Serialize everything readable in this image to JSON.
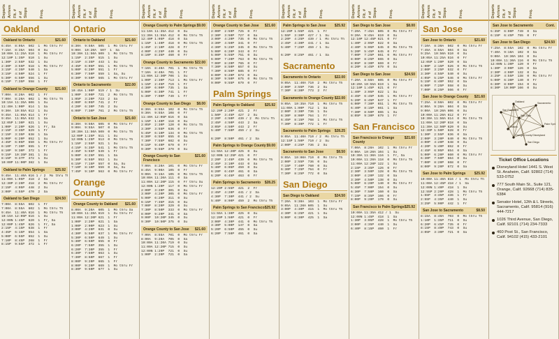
{
  "column_headers": [
    "Departs",
    "Arrives",
    "Flt. #",
    "# of Stops",
    "Freq."
  ],
  "panels": [
    {
      "blocks": [
        {
          "city": "Oakland"
        },
        {
          "route": "Oakland to Ontario",
          "fare": "$21.60",
          "rows": [
            "6:45A  8:05A  502  1  Mo thru Fr",
            "7:15A  8:35A  504  0  Su",
            "10:00A 11:25A 510  1  Mo thru Fr",
            "12:10P 1:35P  510  1  Su",
            "1:30P  2:55P  532  1  Su",
            "2:30P  3:55P  518  1  Mo thru Fr",
            "3:15P  4:35P  540  1  Sa",
            "3:15P  4:50P  524  1  Fr",
            "5:30P  6:50P  556  1  Su",
            "6:15P  7:35P  558  1  Fr"
          ]
        },
        {
          "route": "Oakland to Orange County",
          "fare": "$21.60",
          "rows": [
            "7:00A  8:20A  602  1  Fr",
            "7:00A  8:20A  602  1  Mo thru Th",
            "10:15A 11:35A 606  1  Su",
            "11:40A 1:00P  614  1  Sa",
            "9:30A  10:55A 612  1  Su",
            "9:45A  11:05A 614  1  Fr",
            "9:45A  11:05A 632  1  Sa",
            "12:05P 1:30P  621  1  Su",
            "1:00P  2:20P  626  1  Fr, Sa",
            "2:15P  3:35P  629  1  Fr",
            "2:15P  3:35P  638  1  Sa",
            "5:00P  6:20P  652  1  Su",
            "4:45P  6:05P  650  1  Mo thru Fr",
            "6:10P  7:30P  655  1  Fr",
            "8:10P  9:30P  372  1  Fr",
            "9:15P  10:35P 381  1  Su",
            "8:15P  9:37P  372  1  Su",
            "10:00P 11:00P 382  1  Su"
          ]
        },
        {
          "route": "Oakland to Palm Springs",
          "fare": "$25.92",
          "rows": [
            "9:45A  11:40A 616 1 / 2  Mo thru Th",
            "11:00A 1:05P  418  2  Sa",
            "12:30P 2:20P  418  2  Mo thru Fr",
            "2:15P  4:05P  448  2  Su",
            "3:00P  4:55P  470  2  Sa"
          ]
        },
        {
          "route": "Oakland to San Diego",
          "fare": "$24.50",
          "rows": [
            "7:00A  8:55A  602  1  Fr",
            "7:00A  8:55A  602  1  Mo thru Th",
            "9:45A  11:40A 616  1  Mo thru Th",
            "10:15A 12:05P 616  1  Su",
            "12:00N 1:45P  620  1  Fr, Sa",
            "12:00P 1:45P  626  1  Fr, Sa",
            "2:15P  4:15P  638  1  Fr",
            "4:45P  6:15P  654  1  Sa",
            "5:00P  6:55P  652  1  Su",
            "7:10P  8:45P  268  1  Fr",
            "8:15P  9:55P  372  1  Fr"
          ]
        }
      ]
    },
    {
      "blocks": [
        {
          "city": "Ontario"
        },
        {
          "route": "Ontario to Oakland",
          "fare": "$21.60",
          "rows": [
            "8:30A  9:50A  505  1  Mo thru Fr",
            "9:00A  10:20A  507  1  Sa",
            "10:30A 11:50A 509  1  Mo thru Th",
            "1:15P  2:35P  515  1  Su",
            "3:15P  4:35P  443  1  Su",
            "4:45P  6:05P  551  1  Mo thru Th",
            "5:00P  6:20P  551  1  Fr",
            "6:30P  7:50P  559  1  Sa, Su",
            "8:30P  9:50P  565  1  Mo thru Fr"
          ]
        },
        {
          "route": "Ontario to Sacramento",
          "fare": "$22.00",
          "rows": [
            "10:45A 1:00P  519 / 1  Su",
            "1:00P  3:00P  721  2  Mo thru Th",
            "1:05P  3:20P  723  2  Sa",
            "4:00P  6:05P  741  2  Fr",
            "4:20P  6:30P  745  2  Su",
            "6:00P  7:30P  761  2  Mo thru Th"
          ]
        },
        {
          "route": "Ontario to San Jose",
          "fare": "$21.60",
          "rows": [
            "8:30A  9:50A  505  0  Mo thru Fr",
            "9:00A  9:55A  507  0  Sa",
            "10:30A 11:50A 509  0  Mo thru Th",
            "12:00P 1:25P  511  1  Su",
            "12:00N 1:25P  513  0  Mo thru Th",
            "1:15P  2:55P  521  1  Su",
            "4:15P  5:35P  541  1  Mo thru Th",
            "4:35P  5:55P  549  1  Fr",
            "5:00P  6:25P  551  1  Sa",
            "5:30P  6:55P  553  1  Su",
            "6:15P  7:15P  557  0  Sa, Su",
            "7:10P  8:10P  559  0  Sa, Su",
            "7:45P  9:10P  563  0  Mo thru Fr"
          ]
        },
        {
          "city": "Orange County"
        },
        {
          "route": "Orange County to Oakland",
          "fare": "$21.60",
          "rows": [
            "8:00A  9:20A  605  1  Mo thru Sa",
            "10:00A 11:20A 619  1  Su thru Fr",
            "11:00A 12:20P 621  1  Fr",
            "1:00P  2:20P  621  1  Sa",
            "1:00P  2:00P  623  1  Su",
            "3:00P  4:20P  631  0  Su",
            "4:30P  5:50P  637  1  Mo thru Fr",
            "5:30P  6:50P  649  1  Su",
            "5:30P  6:50P  655  0  Fr",
            "6:20P  7:50P  355  1  Su",
            "6:20P  7:30P  355  1  Fr",
            "6:30P  7:50P  663  1  Su",
            "7:30P  8:50P  667  1  Fr",
            "8:00P  9:20P  665  1  Fr",
            "8:00P  9:20P  669  1  Mo thru Fr",
            "8:30P  9:50P  677  1  Su"
          ]
        }
      ]
    },
    {
      "blocks": [
        {
          "route": "Orange County to Palm Springs",
          "fare": "$9.00",
          "rows": [
            "11:10A 11:35A 412  0  Su",
            "11:30A 11:55A 412  0  Mo thru Th",
            "12:40P 1:05P  418  0  Sa",
            "1:15P  1:40P  418  0  Mo thru Th",
            "1:45P  2:10P  428  0  Fr",
            "4:00P  4:25P  440  0  Su",
            "8:10P  8:35P  460  0  Fr"
          ]
        },
        {
          "route": "Orange County to Sacramento",
          "fare": "$22.00",
          "rows": [
            "7:10A  8:40A  701  1  Mo thru Th",
            "7:10A  8:40A  701  1  Fr",
            "11:00A 12:30P 706  1  Su",
            "1:00P  2:30P  713  1  Mo thru Fr",
            "1:15P  2:45P  719  1  Fr",
            "4:30P  6:00P  735  1  Sa",
            "5:00P  6:30P  741  1  Fr",
            "5:30P  7:00P  749  1  Fr"
          ]
        },
        {
          "route": "Orange County to San Diego",
          "fare": "$8.00",
          "rows": [
            "8:30A  8:55A  102  0  Mo thru Th",
            "9:30A  9:55A  108  0  Fr",
            "11:40A 12:05P 616  0  Sa",
            "1:15P  1:40P  118  0  Su",
            "2:05P  2:30P  120  0  Mo thru Th",
            "3:30P  3:55P  636  0  Fr",
            "5:45P  6:10P  134  0  Mo thru Th",
            "6:30P  6:55P  655  0  Sa",
            "7:30P  7:55P  682  0  Su",
            "9:15P  9:40P  679  0  Fr",
            "9:30P  9:55P  379  0  Su"
          ]
        },
        {
          "route": "Orange County to San Francisco",
          "fare": "$21.60",
          "rows": [
            "7:00A  8:20A  101  0  Mo thru Fr",
            "8:45A  9:00A  105  0  Fr",
            "9:00A  9:15A  105  0  Mo thru Th",
            "10:00A 11:20A 111  0  Sa",
            "11:00A 12:20P 115  0  Fr thru Su",
            "12:00N 1:20P  117  0  Mo thru Fr",
            "2:00P  3:20P  301  0  Su",
            "3:00P  4:20P  305  0  Mo thru Fr",
            "5:00P  6:20P  311  0  Su",
            "6:15P  7:35P  315  0  Su",
            "7:00P  8:20P  329  0  Su",
            "7:30P  8:50P  333  0  Mo thru Fr",
            "8:00P  9:20P  341  0  Sa",
            "9:00P  10:20P 345  0  Su",
            "9:30P  10:50P 375  0  Su"
          ]
        },
        {
          "route": "Orange County to San Jose",
          "fare": "$21.60",
          "rows": [
            "7:00A  8:55A  701  0  Mo thru Fr",
            "8:00A  9:20A  705  0  Sa",
            "10:00A 11:20A 719  0  Su",
            "11:00A 12:20P 715  0  Su",
            "12:00N 1:20P  721  0  Su",
            "1:00P  2:20P  721  0  Sa"
          ]
        }
      ]
    },
    {
      "blocks": [
        {
          "route": "Orange County to San Jose",
          "fare": "$21.60",
          "rows": [
            "2:00P  2:59P  725  0  Fr",
            "2:30P  3:50P  727  0  Sa",
            "3:00P  4:20P  735  0  Mo thru Th",
            "3:30P  4:50P  341  0  Fr",
            "4:30P  5:25P  345  0  Mo thru Th",
            "5:00P  6:20P  343  0  Fr",
            "5:00P  5:55P  751  0  Su",
            "6:00P  7:20P  763  0  Mo thru Th",
            "7:00P  8:20P  765  0  Fr",
            "7:30P  8:50P  657  0  Su",
            "7:30P  8:50P  685  0  Fr",
            "8:00P  9:20P  673  0  Su",
            "8:30P  9:50P  675  0  Mo thru Th",
            "9:00P  9:55P  679  0  Fr"
          ]
        },
        {
          "city": "Palm Springs"
        },
        {
          "route": "Palm Springs to Oakland",
          "fare": "$25.92",
          "rows": [
            "12:20P 2:20P  421  2  Fr",
            "1:50P  3:45P  427  2  Su",
            "2:20P  4:50P  439 / 2  Mo thru Th",
            "2:45P  4:50P  443  2  Sa",
            "3:05P  4:50P  443  2  Fr",
            "5:40P  7:50P  459 / 2  Su",
            "",
            "6:20P  8:50P  461 / 2  Sa"
          ]
        },
        {
          "route": "Palm Springs to Orange County",
          "fare": "$9.00",
          "rows": [
            "11:55A 12:20P 425  0  Su",
            "12:00N 12:25P 421  0  Fr",
            "2:20P  2:45P  439  0  Mo thru Th",
            "2:45P  3:10P  443  0  Sa",
            "5:40P  6:05P  459  0  Su",
            "6:20P  6:45P  461  0  Sa",
            "6:20P  6:45P  463  0  Fr"
          ]
        },
        {
          "route": "Palm Springs to Sacramento",
          "fare": "$28.25",
          "rows": [
            "12:20P 2:55P  421  2  Fr",
            "2:45P  4:20P  441 / 2  Sa",
            "4:30P  7:30P  441 / 2  Su",
            "5:40P  8:00P  459  2  Mo thru Th"
          ]
        },
        {
          "route": "Palm Springs to San Francisco",
          "fare": "$25.92",
          "rows": [
            "11:55A 1:30P  425  0  Su",
            "12:20P 1:50P  421  0  Fr",
            "3:00P  4:30P  441  0  Mo thru Th",
            "3:30P  5:00P  147  0  Sa",
            "5:20P  6:50P  455  0  Su",
            "6:20P  7:50P  461  0  Sa"
          ]
        }
      ]
    },
    {
      "blocks": [
        {
          "route": "Palm Springs to San Jose",
          "fare": "$25.92",
          "rows": [
            "12:20P 1:55P  421  1  Fr",
            "1:55P  3:30P  427 / 1  Su",
            "2:20P  4:25P  439 / 1  Mo thru Th",
            "2:45P  4:30P  441 / 1  Sa",
            "5:40P  7:25P  459 / 1  Su",
            "",
            "6:20P  8:25P  461 / 1  Sa"
          ]
        },
        {
          "city": "Sacramento"
        },
        {
          "route": "Sacramento to Ontario",
          "fare": "$22.00",
          "rows": [
            "9:05A  11:40A 710  2  Mo thru Th",
            "2:00P  3:55P  736  2  Su",
            "7:30P  8:30P  773  2  Fr"
          ]
        },
        {
          "route": "Sacramento to Orange County",
          "fare": "$22.00",
          "rows": [
            "9:05A  10:35A 710  1  Mo thru Th",
            "11:00A 1:00P  712  1  Sa",
            "2:00P  3:30P  736  1  Su",
            "6:30P  8:00P  764  1  Fr",
            "6:45P  8:15P  768  1  Mo thru Th",
            "7:30P  8:30P  772  1  Fr"
          ]
        },
        {
          "route": "Sacramento to Palm Springs",
          "fare": "$28.25",
          "rows": [
            "9:05A  11:40A 710 / 2  Mo thru Th",
            "12:15P 1:50P  710 / 2  Su",
            "2:00P  4:25P  736  2  Su"
          ]
        },
        {
          "route": "Sacramento to San Jose",
          "fare": "$8.50",
          "rows": [
            "9:05A  10:00A 710  0  Mo thru Th",
            "2:00P  2:55P  736  0  Su",
            "7:15P  7:40P  760  0  Su",
            "6:30P  7:25P  764  0  Fr",
            "7:30P  8:25P  772  0  Sa"
          ]
        },
        {
          "city": "San Diego"
        },
        {
          "route": "San Diego to Oakland",
          "fare": "$24.50",
          "rows": [
            "7:20A  9:30A  103  1  Mo thru Fr",
            "9:05A  11:20A 605  1  Su",
            "3:00P  4:30P  415  1  Mo thru Th",
            "4:30P  6:25P  421  1  Su",
            "5:00P  6:30P  425  1  Sa"
          ]
        }
      ]
    },
    {
      "blocks": [
        {
          "route": "San Diego to San Jose",
          "fare": "$8.00",
          "rows": [
            "7:20A  7:45A  605  0  Mo thru Fr",
            "9:20A  9:45A  619  0  Su",
            "12:10P 12:45P 621  0  Fr",
            "1:40P  2:05P  622  0  Sa",
            "4:40P  5:05P  645  0  Mo thru Th",
            "5:20P  5:45P  645  0  Fr",
            "7:00P  7:25P  661  0  Mo thru Fr",
            "8:00P  8:25P  665  0  Su",
            "8:05P  8:30P  669  0  Fr",
            "8:20P  8:45P  679  0  Su"
          ]
        },
        {
          "route": "San Diego to San Jose",
          "fare": "$24.50",
          "rows": [
            "7:20A  8:50A  605  0  Mo thru Fr",
            "10:20A 10:55A 619  1  Sa",
            "12:10P 1:45P  621  0  Fr",
            "1:40P  3:05P  622  1  Su",
            "4:45P  6:45P  645  1  Mo thru Fr",
            "5:20P  6:45P  647  1  Fr",
            "6:00P  7:30P  651  1  Mo thru Th",
            "6:40P  8:15P  661  1  Sa",
            "7:30P  8:50P  665  1  Su",
            "8:05P  9:30P  679  1  Fr"
          ]
        },
        {
          "city": "San Francisco"
        },
        {
          "route": "San Francisco to Orange County",
          "fare": "$21.60",
          "rows": [
            "7:00A  8:20A  102  1  Mo thru Fr",
            "9:00A  10:20A 104  1  Su",
            "10:30A 11:30A 116  1  Fr, Sa",
            "10:00A 11:20A 118  0  Mo thru Th",
            "11:00A 12:20P 122  1  Su",
            "2:15P  3:35P  126  0  Fr",
            "2:30P  3:50P  128  0  Mo thru Th",
            "3:00P  4:20P  132  0  Sa",
            "3:30P  4:50P  138  0  Su",
            "5:00P  6:20P  140  0  Mo thru Fr",
            "5:45P  7:00P  154  0  Su",
            "6:30P  7:50P  160  0  Sa",
            "7:15P  8:35P  166  0  Fr",
            "8:00P  9:20P  170  0  Su"
          ]
        },
        {
          "route": "San Francisco to Palm Springs",
          "fare": "$25.92",
          "rows": [
            "10:00A 11:35A 412 / 1  Su",
            "12:00N 1:45P  418  1  Sa",
            "1:30P  3:05P  428  1  Mo thru Th",
            "3:00P  4:35P  440  1  Su",
            "6:40P  8:15P  460  1  Fr"
          ]
        }
      ]
    },
    {
      "blocks": [
        {
          "city": "San Jose"
        },
        {
          "route": "San Jose to Ontario",
          "fare": "$21.60",
          "rows": [
            "7:10A  8:30A  502  0  Mo thru Fr",
            "7:45A  8:55A  504  0  Sa",
            "9:25A  10:50A 510  0  Su",
            "10:05A 11:25A 516  0  Fr",
            "12:05P 1:20P  520  0  Sa",
            "1:00P  2:15P  526  0  Mo thru Th",
            "2:00P  3:25P  532  0  Fr",
            "3:30P  4:55P  540  0  Su",
            "4:05P  5:25P  546  0  Mo thru Fr",
            "5:15P  6:40P  552  0  Sa",
            "6:00P  7:25P  558  0  Su",
            "7:00P  8:25P  566  0  Fr"
          ]
        },
        {
          "route": "San Jose to Orange County",
          "fare": "$21.60",
          "rows": [
            "7:25A  8:50A  602  0  Mo thru Fr",
            "8:00A  9:20A  604  0  Sa",
            "9:00A  10:20A 606  0  Su",
            "10:00A 11:20A 612  0  Fr",
            "10:30A 11:50A 614  0  Mo thru Th",
            "11:00A 12:20P 618  0  Sa",
            "11:30A 12:50P 620  0  Su",
            "12:30P 1:50P  628  0  Fr",
            "1:30P  2:55P  636  0  Sa",
            "2:00P  3:20P  640  0  Mo thru Th",
            "3:00P  4:20P  648  0  Su",
            "4:20P  5:40P  652  0  Fr",
            "4:45P  6:05P  654  0  Sa",
            "5:00P  6:20P  660  0  Mo thru Fr",
            "6:30P  7:50P  664  0  Su",
            "7:00P  8:20P  668  0  Fr",
            "8:00P  9:20P  672  0  Sa"
          ]
        },
        {
          "route": "San Jose to Palm Springs",
          "fare": "$25.92",
          "rows": [
            "10:00A 11:40A 616 / 1  Mo thru Th",
            "11:00A 12:45P 418 / 1  Sa",
            "12:00N 1:40P  418  1  Su",
            "12:55P 2:20P  428  1  Mo thru Th",
            "1:55P  3:35P  436  1  Fr",
            "2:55P  4:35P  440  1  Su",
            "3:25P  5:00P  442  1  Fr"
          ]
        },
        {
          "route": "San Jose to Sacramento",
          "fare": "$8.50",
          "rows": [
            "8:15A  8:40A  703  0  Mo thru Th",
            "1:10P  1:35P  711  0  Su",
            "6:20P  6:45P  735  0  Fr",
            "8:15P  8:40P  743  0  Su",
            "3:05P  3:30P  721  0  Sa"
          ]
        }
      ]
    },
    {
      "blocks": [
        {
          "route": "San Jose to Sacramento",
          "fare": "Cont.",
          "rows": [
            "5:35P  6:00P  749  0  Sa",
            "6:15P  6:45P  755  0  Fr"
          ]
        },
        {
          "route": "San Jose to San Diego",
          "fare": "$24.50",
          "rows": [
            "7:25A  8:55A  102  0  Mo thru Fr",
            "7:40A  9:10A  102  0  Sa",
            "9:00A  10:30A 104  0  Su",
            "10:00A 11:30A 116  0  Mo thru Th",
            "12:00N 1:30P  120  0  Fr",
            "1:30P  3:00P  126  0  Sa",
            "2:30P  4:00P  132  0  Su",
            "3:25P  4:55P  138  0  Mo thru Fr",
            "5:00P  6:30P  140  0  Fr",
            "6:30P  8:00P  154  0  Su",
            "8:30P  10:00P 166  0  Su"
          ]
        },
        {
          "map": true
        },
        {
          "office_title": "Ticket Office Locations"
        },
        {
          "office": "Disneyland Hotel 1441 S. West St. Anaheim, Calif. 92802 (714) 533-0752"
        },
        {
          "office": "777 South Main St., Suite 121, Orange, Calif. 92668 (714) 835-6384"
        },
        {
          "office": "Senator Hotel, 12th & L Streets, Sacramento, Calif. 95814 (916) 444-7217"
        },
        {
          "office": "1026 Third Avenue, San Diego, Calif. 92101 (714) 234-7333"
        },
        {
          "office": "460 Post St., San Francisco, Calif. 94102 (415) 433-2101"
        }
      ]
    }
  ],
  "map_labels": [
    "Oakland",
    "San Francisco",
    "Sacramento",
    "San Jose",
    "Ontario",
    "Orange County Disneyland",
    "Palm Springs",
    "San Diego"
  ]
}
